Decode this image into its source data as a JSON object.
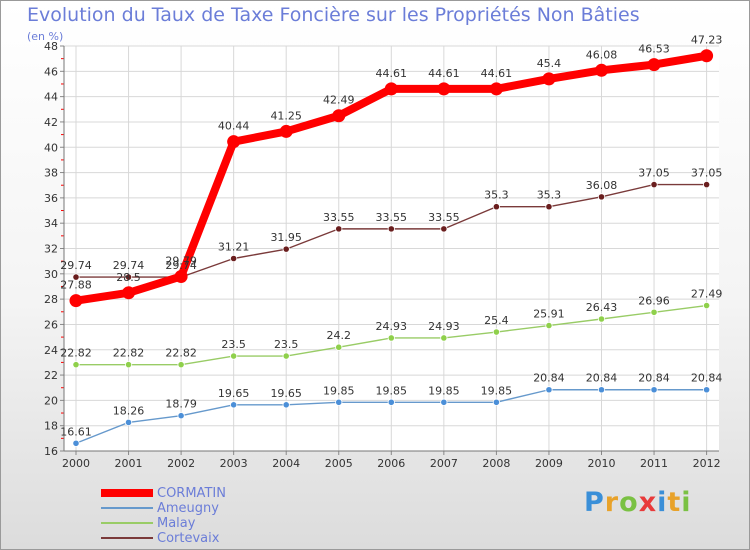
{
  "title": "Evolution du Taux de Taxe Foncière sur les Propriétés Non Bâties",
  "unit_label": "(en %)",
  "brand": {
    "letters": [
      "P",
      "r",
      "o",
      "x",
      "i",
      "t",
      "i"
    ],
    "colors": [
      "#3a8fd8",
      "#e8a22a",
      "#7ac143",
      "#e83a3a",
      "#3a8fd8",
      "#e8a22a",
      "#7ac143"
    ]
  },
  "chart_data": {
    "type": "line",
    "title": "Evolution du Taux de Taxe Foncière sur les Propriétés Non Bâties",
    "ylabel": "(en %)",
    "xlabel": "",
    "x": [
      "2000",
      "2001",
      "2002",
      "2003",
      "2004",
      "2005",
      "2006",
      "2007",
      "2008",
      "2009",
      "2010",
      "2011",
      "2012"
    ],
    "ylim": [
      16,
      48
    ],
    "yticks": [
      "16",
      "18",
      "20",
      "22",
      "24",
      "26",
      "28",
      "30",
      "32",
      "34",
      "36",
      "38",
      "40",
      "42",
      "44",
      "46",
      "48"
    ],
    "grid": true,
    "legend_position": "bottom-left",
    "series": [
      {
        "name": "CORMATIN",
        "values": [
          27.88,
          28.5,
          29.79,
          40.44,
          41.25,
          42.49,
          44.61,
          44.61,
          44.61,
          45.4,
          46.08,
          46.53,
          47.23
        ],
        "labels": [
          "27.88",
          "28.5",
          "29.79",
          "40.44",
          "41.25",
          "42.49",
          "44.61",
          "44.61",
          "44.61",
          "45.4",
          "46.08",
          "46.53",
          "47.23"
        ],
        "color": "#ff0000"
      },
      {
        "name": "Ameugny",
        "values": [
          16.61,
          18.26,
          18.79,
          19.65,
          19.65,
          19.85,
          19.85,
          19.85,
          19.85,
          20.84,
          20.84,
          20.84,
          20.84
        ],
        "labels": [
          "16.61",
          "18.26",
          "18.79",
          "19.65",
          "19.65",
          "19.85",
          "19.85",
          "19.85",
          "19.85",
          "20.84",
          "20.84",
          "20.84",
          "20.84"
        ],
        "color": "#6699cc",
        "marker": "#4b8fd8"
      },
      {
        "name": "Malay",
        "values": [
          22.82,
          22.82,
          22.82,
          23.5,
          23.5,
          24.2,
          24.93,
          24.93,
          25.4,
          25.91,
          26.43,
          26.96,
          27.49
        ],
        "labels": [
          "22.82",
          "22.82",
          "22.82",
          "23.5",
          "23.5",
          "24.2",
          "24.93",
          "24.93",
          "25.4",
          "25.91",
          "26.43",
          "26.96",
          "27.49"
        ],
        "color": "#99cc66",
        "marker": "#8fd04b"
      },
      {
        "name": "Cortevaix",
        "values": [
          29.74,
          29.74,
          29.74,
          31.21,
          31.95,
          33.55,
          33.55,
          33.55,
          35.3,
          35.3,
          36.08,
          37.05,
          37.05
        ],
        "labels": [
          "29.74",
          "29.74",
          "29.74",
          "31.21",
          "31.95",
          "33.55",
          "33.55",
          "33.55",
          "35.3",
          "35.3",
          "36.08",
          "37.05",
          "37.05"
        ],
        "color": "#7a3a3a",
        "marker": "#6a1e1e"
      }
    ]
  }
}
